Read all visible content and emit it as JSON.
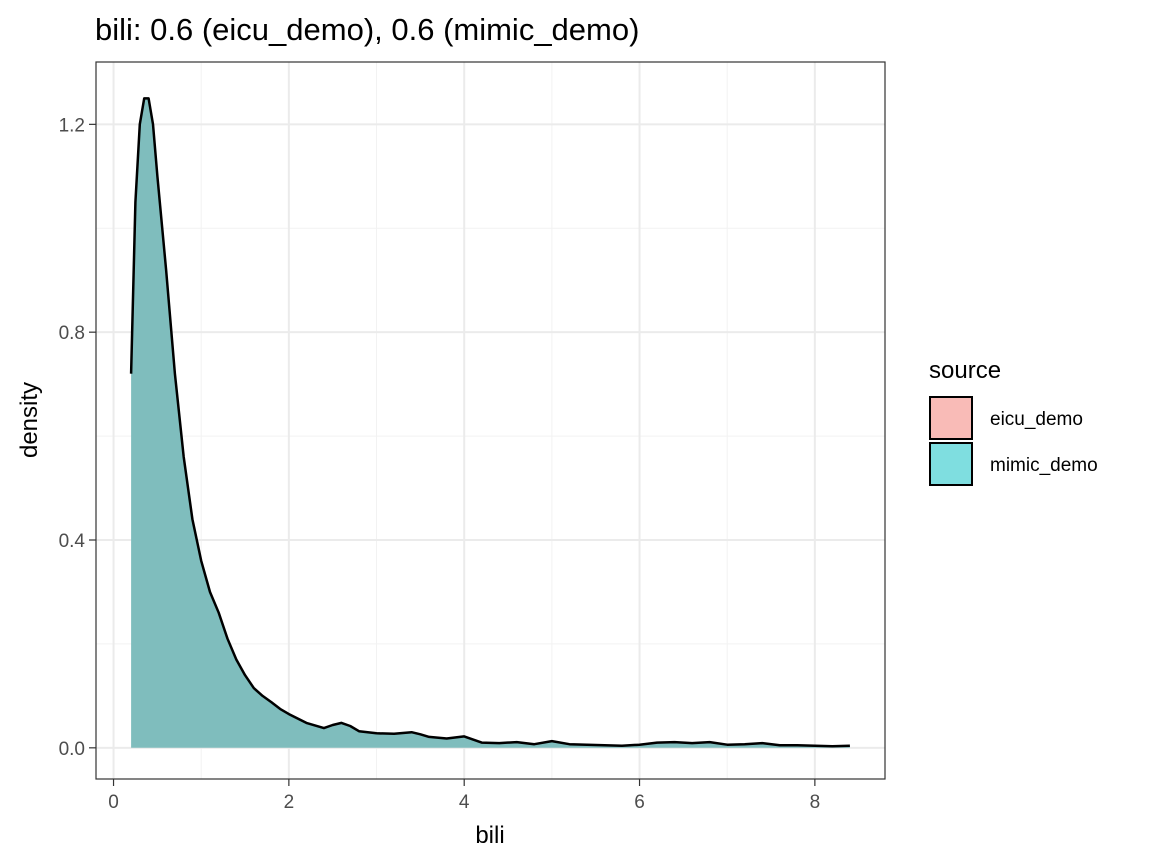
{
  "chart_data": {
    "type": "area",
    "title": "bili: 0.6 (eicu_demo), 0.6 (mimic_demo)",
    "xlabel": "bili",
    "ylabel": "density",
    "xlim": [
      -0.2,
      8.8
    ],
    "ylim": [
      -0.06,
      1.32
    ],
    "x_ticks": [
      0,
      2,
      4,
      6,
      8
    ],
    "x_tick_labels": [
      "0",
      "2",
      "4",
      "6",
      "8"
    ],
    "y_ticks": [
      0.0,
      0.4,
      0.8,
      1.2
    ],
    "y_tick_labels": [
      "0.0",
      "0.4",
      "0.8",
      "1.2"
    ],
    "grid": true,
    "legend": {
      "title": "source",
      "position": "right",
      "entries": [
        {
          "label": "eicu_demo",
          "color": "#F8766D",
          "fill": "#F9BBB7"
        },
        {
          "label": "mimic_demo",
          "color": "#00BFC4",
          "fill": "#7FDEE0"
        }
      ]
    },
    "series": [
      {
        "name": "mimic_demo",
        "fill_color": "#7FBDBD",
        "line_color": "#000000",
        "x": [
          0.2,
          0.25,
          0.3,
          0.35,
          0.4,
          0.45,
          0.5,
          0.6,
          0.7,
          0.8,
          0.9,
          1.0,
          1.1,
          1.2,
          1.3,
          1.4,
          1.5,
          1.6,
          1.7,
          1.8,
          1.9,
          2.0,
          2.2,
          2.4,
          2.5,
          2.6,
          2.7,
          2.8,
          3.0,
          3.2,
          3.4,
          3.5,
          3.6,
          3.8,
          4.0,
          4.2,
          4.4,
          4.6,
          4.8,
          5.0,
          5.2,
          5.4,
          5.6,
          5.8,
          6.0,
          6.2,
          6.4,
          6.6,
          6.8,
          7.0,
          7.2,
          7.4,
          7.6,
          7.8,
          8.0,
          8.2,
          8.4
        ],
        "y": [
          0.72,
          1.05,
          1.2,
          1.25,
          1.25,
          1.2,
          1.1,
          0.92,
          0.72,
          0.56,
          0.44,
          0.36,
          0.3,
          0.26,
          0.21,
          0.17,
          0.14,
          0.115,
          0.1,
          0.088,
          0.075,
          0.065,
          0.048,
          0.038,
          0.044,
          0.048,
          0.042,
          0.032,
          0.028,
          0.027,
          0.03,
          0.026,
          0.021,
          0.018,
          0.022,
          0.01,
          0.009,
          0.011,
          0.007,
          0.013,
          0.007,
          0.006,
          0.005,
          0.004,
          0.006,
          0.01,
          0.011,
          0.009,
          0.011,
          0.006,
          0.007,
          0.009,
          0.005,
          0.005,
          0.004,
          0.003,
          0.004
        ]
      }
    ]
  }
}
